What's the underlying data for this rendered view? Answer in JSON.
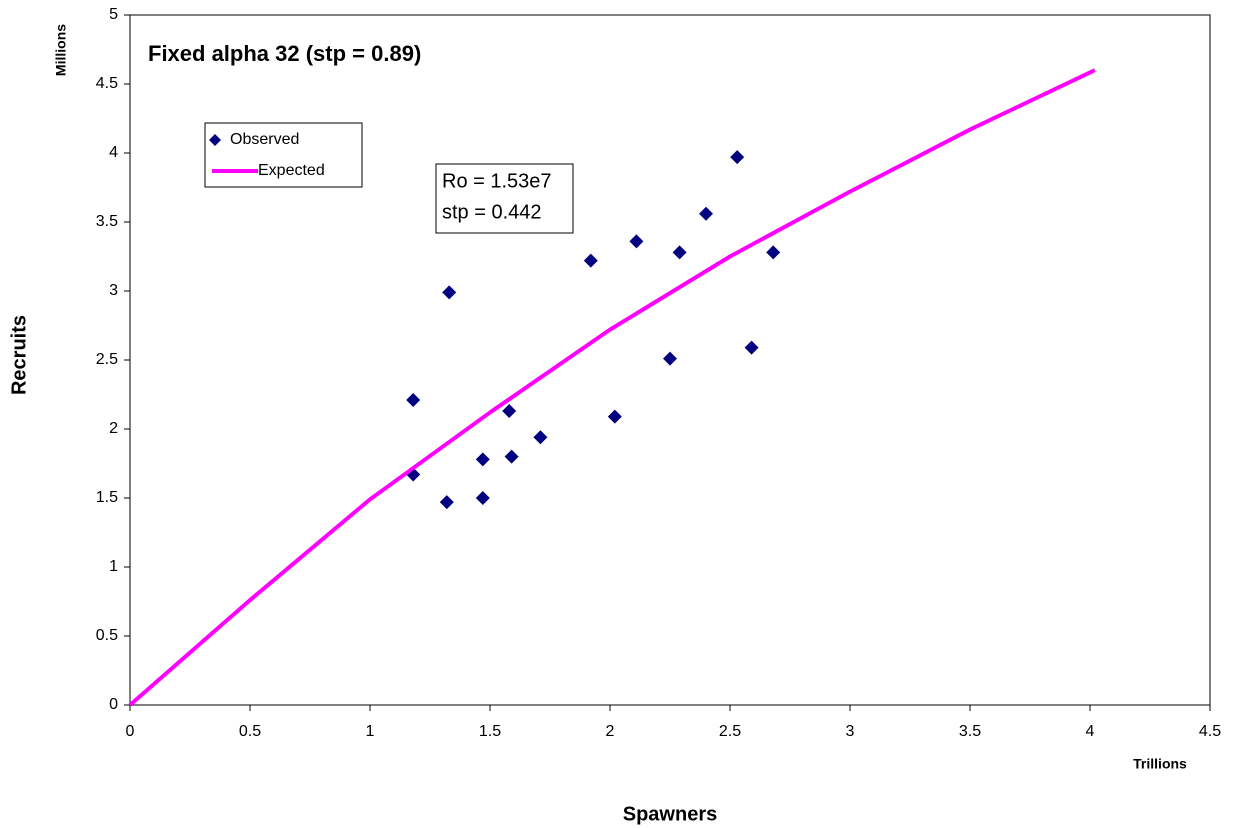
{
  "chart_data": {
    "type": "scatter",
    "title": "Fixed alpha 32 (stp = 0.89)",
    "x_label": "Spawners",
    "y_label": "Recruits",
    "x_unit": "Trillions",
    "y_unit": "Millions",
    "annotation": [
      "Ro = 1.53e7",
      "stp = 0.442"
    ],
    "xlim": [
      0,
      4.5
    ],
    "xticks": [
      0,
      0.5,
      1,
      1.5,
      2,
      2.5,
      3,
      3.5,
      4,
      4.5
    ],
    "ylim": [
      0,
      5
    ],
    "yticks": [
      0,
      0.5,
      1,
      1.5,
      2,
      2.5,
      3,
      3.5,
      4,
      4.5,
      5
    ],
    "grid": false,
    "legend": "upper left",
    "series": [
      {
        "name": "Observed",
        "type": "scatter",
        "color": "#000080",
        "x": [
          1.18,
          1.18,
          1.33,
          1.32,
          1.47,
          1.47,
          1.58,
          1.59,
          1.71,
          1.92,
          2.02,
          2.11,
          2.25,
          2.29,
          2.4,
          2.53,
          2.59,
          2.68
        ],
        "values": [
          2.21,
          1.67,
          2.99,
          1.47,
          1.78,
          1.5,
          2.13,
          1.8,
          1.94,
          3.22,
          2.09,
          3.36,
          2.51,
          3.28,
          3.56,
          3.97,
          2.59,
          3.28
        ]
      },
      {
        "name": "Expected",
        "type": "line",
        "color": "#ff00ff",
        "x": [
          0,
          0.5,
          1,
          1.5,
          2,
          2.5,
          3,
          3.5,
          4.02
        ],
        "values": [
          0,
          0.76,
          1.49,
          2.12,
          2.72,
          3.25,
          3.72,
          4.17,
          4.6
        ]
      }
    ]
  }
}
